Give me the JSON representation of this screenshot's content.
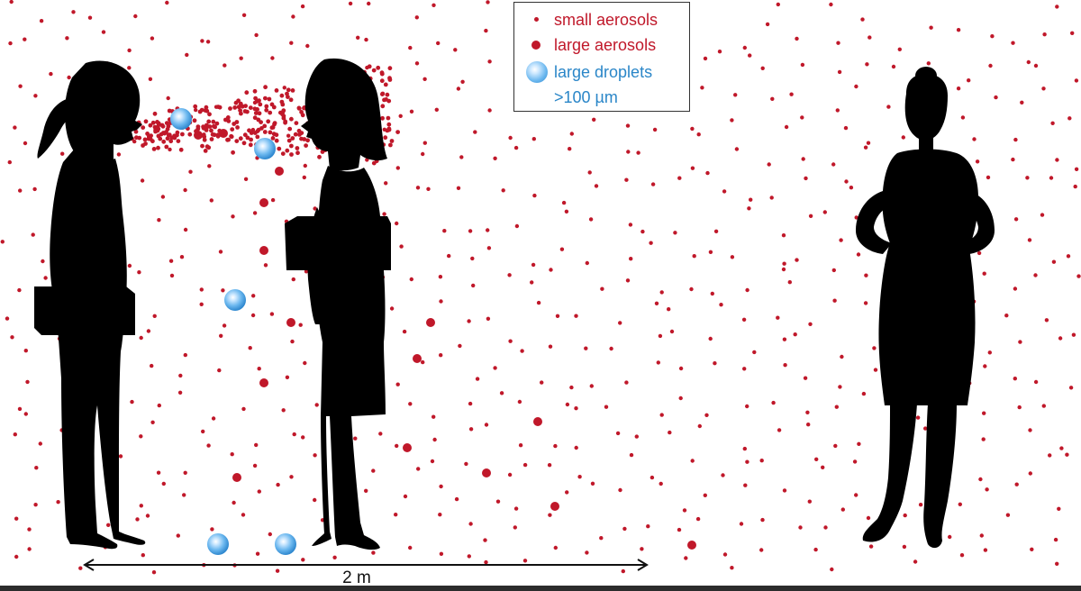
{
  "legend": {
    "small_aerosols": "small aerosols",
    "large_aerosols": "large aerosols",
    "large_droplets": "large droplets",
    "droplet_size": ">100 µm"
  },
  "distance_label": "2 m",
  "colors": {
    "aerosol_red": "#c0182a",
    "droplet_blue": "#4aa3e0",
    "silhouette": "#000000"
  }
}
